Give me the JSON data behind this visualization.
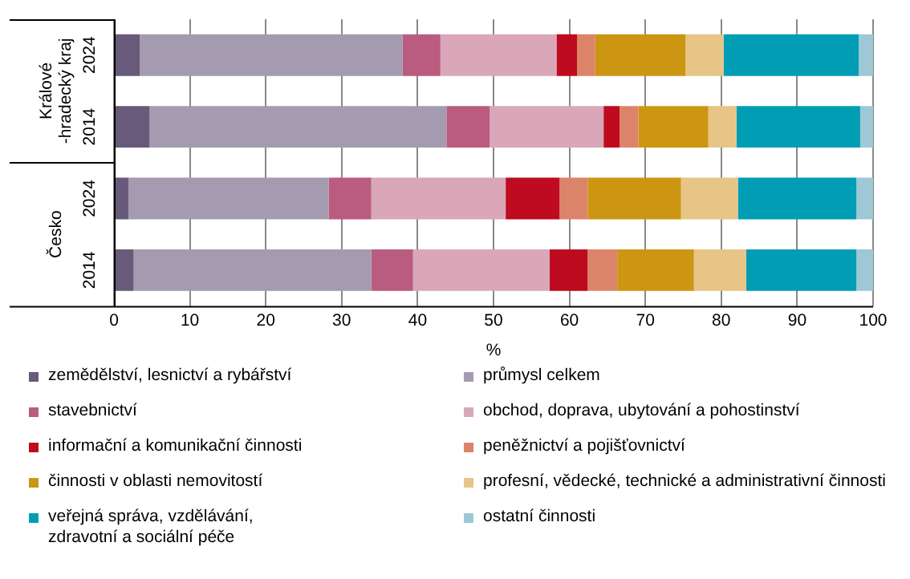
{
  "chart_data": {
    "type": "bar",
    "orientation": "horizontal",
    "stacked": true,
    "xlabel": "%",
    "categories": [
      "2024",
      "2014",
      "2024",
      "2014"
    ],
    "annotations": [
      "Králové\n-hradecký kraj",
      "Česko"
    ],
    "xlim": [
      0,
      100
    ],
    "xticks": [
      0,
      10,
      20,
      30,
      40,
      50,
      60,
      70,
      80,
      90,
      100
    ],
    "grid": "x",
    "legend": "bottom",
    "series": [
      {
        "name": "zemědělství, lesnictví a rybářství",
        "color": "#675a7a",
        "values": [
          3.4,
          4.7,
          1.9,
          2.6
        ]
      },
      {
        "name": "průmysl celkem",
        "color": "#a49bb0",
        "values": [
          34.6,
          39.1,
          26.4,
          31.3
        ]
      },
      {
        "name": "stavebnictví",
        "color": "#b95c80",
        "values": [
          5.0,
          5.7,
          5.6,
          5.5
        ]
      },
      {
        "name": "obchod, doprava, ubytování a pohostinství",
        "color": "#d9a7b7",
        "values": [
          15.3,
          15.0,
          17.7,
          18.0
        ]
      },
      {
        "name": "informační a komunikační činnosti",
        "color": "#be0b1f",
        "values": [
          2.7,
          2.1,
          7.1,
          5.0
        ]
      },
      {
        "name": "peněžnictví a pojišťovnictví",
        "color": "#dc846a",
        "values": [
          2.4,
          2.5,
          3.7,
          3.9
        ]
      },
      {
        "name": "činnosti v oblasti nemovitostí",
        "color": "#cc9612",
        "values": [
          11.9,
          9.2,
          12.3,
          10.1
        ]
      },
      {
        "name": "profesní, vědecké, technické a administrativní činnosti",
        "color": "#e6c587",
        "values": [
          5.0,
          3.7,
          7.5,
          6.9
        ]
      },
      {
        "name": "veřejná správa, vzdělávání,\nzdravotní a sociální péče",
        "color": "#009db5",
        "values": [
          17.8,
          16.3,
          15.6,
          14.5
        ]
      },
      {
        "name": "ostatní činnosti",
        "color": "#9fc8d6",
        "values": [
          1.9,
          1.7,
          2.2,
          2.2
        ]
      }
    ]
  }
}
